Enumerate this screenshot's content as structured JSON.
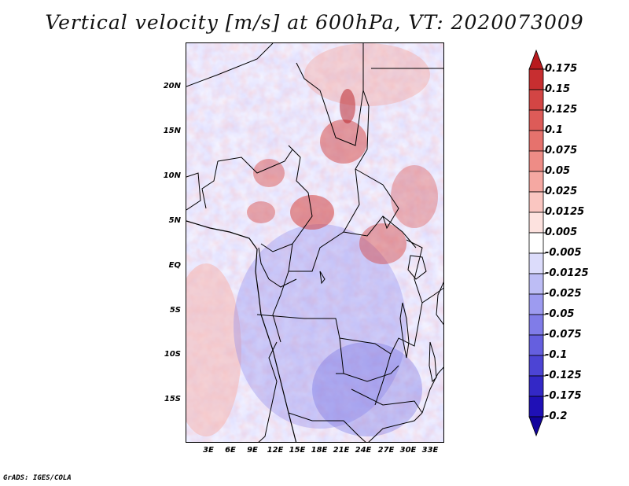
{
  "title": "Vertical velocity [m/s] at 600hPa, VT: 2020073009",
  "credit": "GrADS: IGES/COLA",
  "colors": {
    "positive": "#c0282d",
    "negative": "#3b33c8",
    "neutral": "#ffffff"
  },
  "map": {
    "lat_labels": [
      "20N",
      "15N",
      "10N",
      "5N",
      "EQ",
      "5S",
      "10S",
      "15S"
    ],
    "lon_labels": [
      "3E",
      "6E",
      "9E",
      "12E",
      "15E",
      "18E",
      "21E",
      "24E",
      "27E",
      "30E",
      "33E"
    ]
  },
  "colorbar": {
    "levels": [
      "0.175",
      "0.15",
      "0.125",
      "0.1",
      "0.075",
      "0.05",
      "0.025",
      "0.0125",
      "0.005",
      "-0.005",
      "-0.0125",
      "-0.025",
      "-0.05",
      "-0.075",
      "-0.1",
      "-0.125",
      "-0.175",
      "-0.2"
    ],
    "colors": [
      "#b81a1e",
      "#c72e30",
      "#d34544",
      "#dd5b58",
      "#e6726d",
      "#ee8c86",
      "#f5a8a2",
      "#fac6c1",
      "#fde2df",
      "#ffffff",
      "#dcdcfb",
      "#bdbdf5",
      "#9d9bf0",
      "#807ce8",
      "#655fdf",
      "#4c44d4",
      "#3328c6",
      "#1f10b6",
      "#12049c"
    ]
  }
}
